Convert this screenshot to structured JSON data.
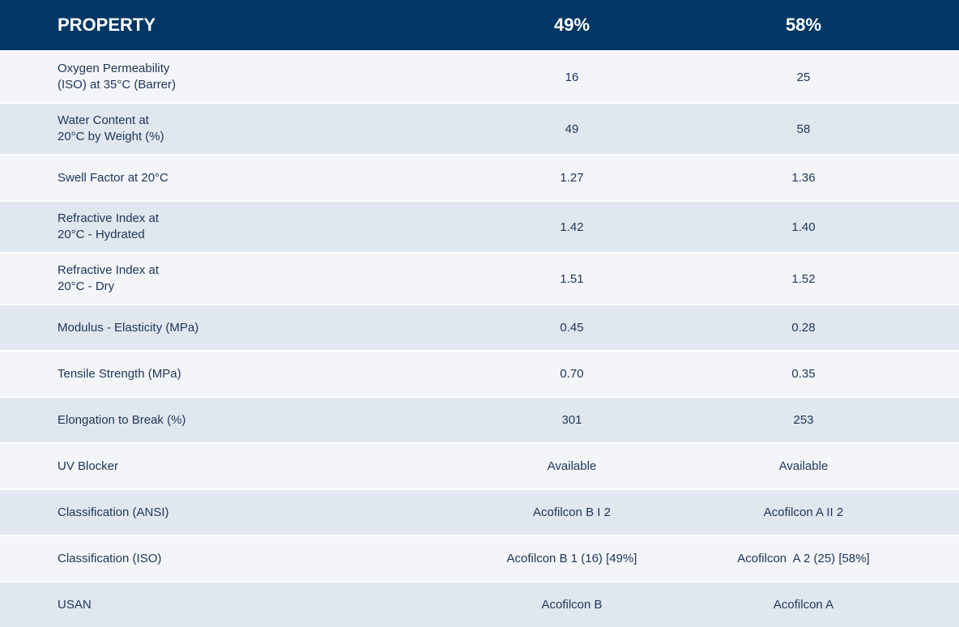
{
  "table": {
    "header": [
      "PROPERTY",
      "49%",
      "58%"
    ],
    "rows": [
      {
        "property": [
          "Oxygen Permeability",
          "(ISO) at 35°C (Barrer)"
        ],
        "values": [
          "16",
          "25"
        ]
      },
      {
        "property": [
          "Water Content at",
          "20°C by Weight (%)"
        ],
        "values": [
          "49",
          "58"
        ]
      },
      {
        "property": [
          "Swell Factor at 20°C"
        ],
        "values": [
          "1.27",
          "1.36"
        ]
      },
      {
        "property": [
          "Refractive Index at",
          "20°C - Hydrated"
        ],
        "values": [
          "1.42",
          "1.40"
        ]
      },
      {
        "property": [
          "Refractive Index at",
          "20°C - Dry"
        ],
        "values": [
          "1.51",
          "1.52"
        ]
      },
      {
        "property": [
          "Modulus - Elasticity (MPa)"
        ],
        "values": [
          "0.45",
          "0.28"
        ]
      },
      {
        "property": [
          "Tensile Strength (MPa)"
        ],
        "values": [
          "0.70",
          "0.35"
        ]
      },
      {
        "property": [
          "Elongation to Break (%)"
        ],
        "values": [
          "301",
          "253"
        ]
      },
      {
        "property": [
          "UV Blocker"
        ],
        "values": [
          "Available",
          "Available"
        ]
      },
      {
        "property": [
          "Classification (ANSI)"
        ],
        "values": [
          "Acofilcon B I 2",
          "Acofilcon A II 2"
        ]
      },
      {
        "property": [
          "Classification (ISO)"
        ],
        "values": [
          "Acofilcon B 1 (16) [49%]",
          "Acofilcon  A 2 (25) [58%]"
        ]
      },
      {
        "property": [
          "USAN"
        ],
        "values": [
          "Acofilcon B",
          "Acofilcon A"
        ]
      }
    ]
  }
}
